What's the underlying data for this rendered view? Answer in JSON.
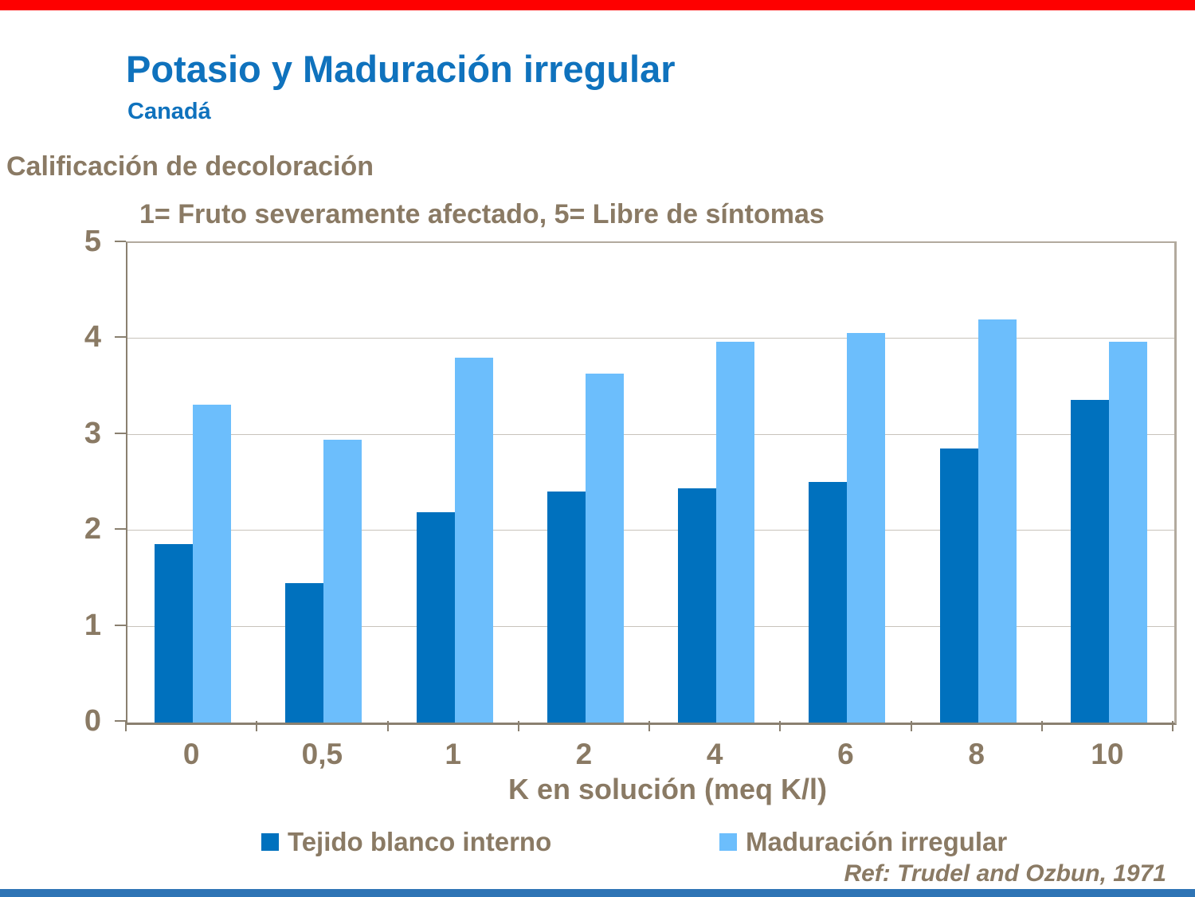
{
  "slide": {
    "title": "Potasio y Maduración irregular",
    "subtitle": "Canadá",
    "y_axis_caption": "Calificación de decoloración",
    "scale_note": "1= Fruto severamente afectado, 5= Libre de síntomas",
    "reference": "Ref: Trudel and Ozbun, 1971",
    "colors": {
      "top_accent_bar": "#FE0000",
      "bottom_accent_bar": "#2E74B5",
      "title_blue": "#0F72BD",
      "text_brown": "#8A7A64",
      "gridline": "#C8C3BB",
      "plot_frame": "#B2AA9E",
      "axis_line": "#8A8070"
    }
  },
  "chart_data": {
    "type": "bar",
    "title": "Potasio y Maduración irregular (Canadá)",
    "categories": [
      "0",
      "0,5",
      "1",
      "2",
      "4",
      "6",
      "8",
      "10"
    ],
    "series": [
      {
        "name": "Tejido blanco interno",
        "color": "#0071BE",
        "values": [
          1.86,
          1.45,
          2.19,
          2.41,
          2.44,
          2.51,
          2.86,
          3.36
        ]
      },
      {
        "name": "Maduración irregular",
        "color": "#6CBEFC",
        "values": [
          3.31,
          2.95,
          3.8,
          3.64,
          3.97,
          4.06,
          4.2,
          3.97
        ]
      }
    ],
    "xlabel": "K en solución (meq K/l)",
    "ylabel": "Calificación de decoloración",
    "ylim": [
      0,
      5
    ],
    "yticks": [
      0,
      1,
      2,
      3,
      4,
      5
    ],
    "grid": true,
    "legend_position": "bottom"
  }
}
